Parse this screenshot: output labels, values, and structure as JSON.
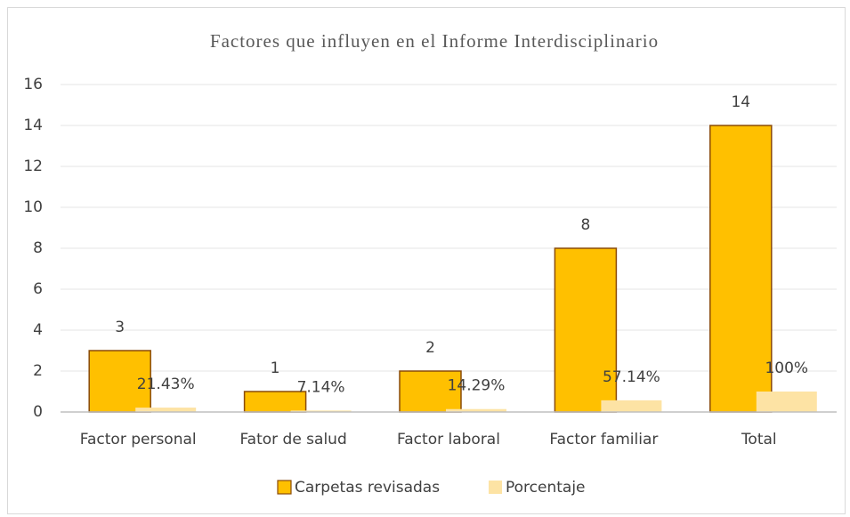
{
  "chart_data": {
    "type": "bar",
    "title": "Factores que influyen en el Informe Interdisciplinario",
    "categories": [
      "Factor personal",
      "Fator de salud",
      "Factor laboral",
      "Factor familiar",
      "Total"
    ],
    "series": [
      {
        "name": "Carpetas revisadas",
        "color": "#ffc000",
        "values": [
          3,
          1,
          2,
          8,
          14
        ]
      },
      {
        "name": "Porcentaje",
        "color": "#fde3a4",
        "values": [
          0.2143,
          0.0714,
          0.1429,
          0.5714,
          1
        ],
        "value_labels": [
          "21.43%",
          "7.14%",
          "14.29%",
          "57.14%",
          "100%"
        ]
      }
    ],
    "ylim": [
      0,
      16
    ],
    "yticks": [
      0,
      2,
      4,
      6,
      8,
      10,
      12,
      14,
      16
    ],
    "grid": true,
    "legend": "bottom"
  }
}
